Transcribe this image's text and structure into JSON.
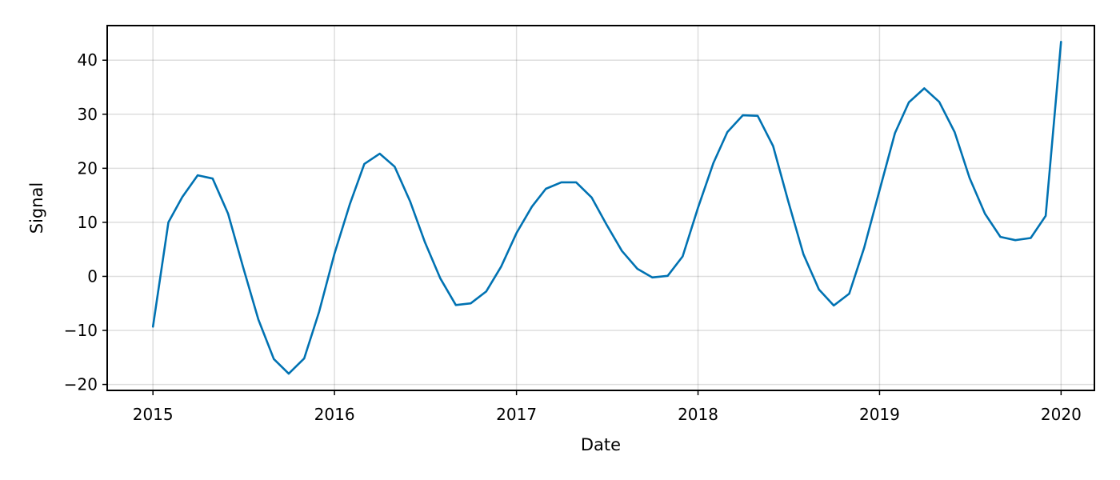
{
  "chart_data": {
    "type": "line",
    "xlabel": "Date",
    "ylabel": "Signal",
    "x_ticks": [
      "2015",
      "2016",
      "2017",
      "2018",
      "2019",
      "2020"
    ],
    "y_ticks": [
      -20,
      -10,
      0,
      10,
      20,
      30,
      40
    ],
    "xlim": [
      "2014-10-01",
      "2020-03-08"
    ],
    "ylim": [
      -21.1,
      46.4
    ],
    "grid": true,
    "series": [
      {
        "color": "#0072b2",
        "x": [
          "2015-01-01",
          "2015-02-01",
          "2015-03-01",
          "2015-04-01",
          "2015-05-01",
          "2015-06-01",
          "2015-07-01",
          "2015-08-01",
          "2015-09-01",
          "2015-10-01",
          "2015-11-01",
          "2015-12-01",
          "2016-01-01",
          "2016-02-01",
          "2016-03-01",
          "2016-04-01",
          "2016-05-01",
          "2016-06-01",
          "2016-07-01",
          "2016-08-01",
          "2016-09-01",
          "2016-10-01",
          "2016-11-01",
          "2016-12-01",
          "2017-01-01",
          "2017-02-01",
          "2017-03-01",
          "2017-04-01",
          "2017-05-01",
          "2017-06-01",
          "2017-07-01",
          "2017-08-01",
          "2017-09-01",
          "2017-10-01",
          "2017-11-01",
          "2017-12-01",
          "2018-01-01",
          "2018-02-01",
          "2018-03-01",
          "2018-04-01",
          "2018-05-01",
          "2018-06-01",
          "2018-07-01",
          "2018-08-01",
          "2018-09-01",
          "2018-10-01",
          "2018-11-01",
          "2018-12-01",
          "2019-01-01",
          "2019-02-01",
          "2019-03-01",
          "2019-04-01",
          "2019-05-01",
          "2019-06-01",
          "2019-07-01",
          "2019-08-01",
          "2019-09-01",
          "2019-10-01",
          "2019-11-01",
          "2019-12-01",
          "2020-01-01"
        ],
        "y": [
          -9.3,
          10.0,
          14.7,
          18.7,
          18.1,
          11.6,
          1.8,
          -8.0,
          -15.3,
          -18.0,
          -15.2,
          -6.6,
          4.2,
          13.4,
          20.8,
          22.7,
          20.3,
          13.9,
          6.3,
          -0.4,
          -5.3,
          -5.0,
          -2.8,
          1.8,
          8.0,
          12.9,
          16.2,
          17.4,
          17.4,
          14.6,
          9.6,
          4.7,
          1.4,
          -0.2,
          0.1,
          3.7,
          12.7,
          21.0,
          26.7,
          29.8,
          29.7,
          24.1,
          14.0,
          4.1,
          -2.4,
          -5.4,
          -3.2,
          5.3,
          15.9,
          26.5,
          32.2,
          34.8,
          32.3,
          26.7,
          18.2,
          11.6,
          7.3,
          6.7,
          7.1,
          11.2,
          43.4
        ]
      }
    ]
  }
}
